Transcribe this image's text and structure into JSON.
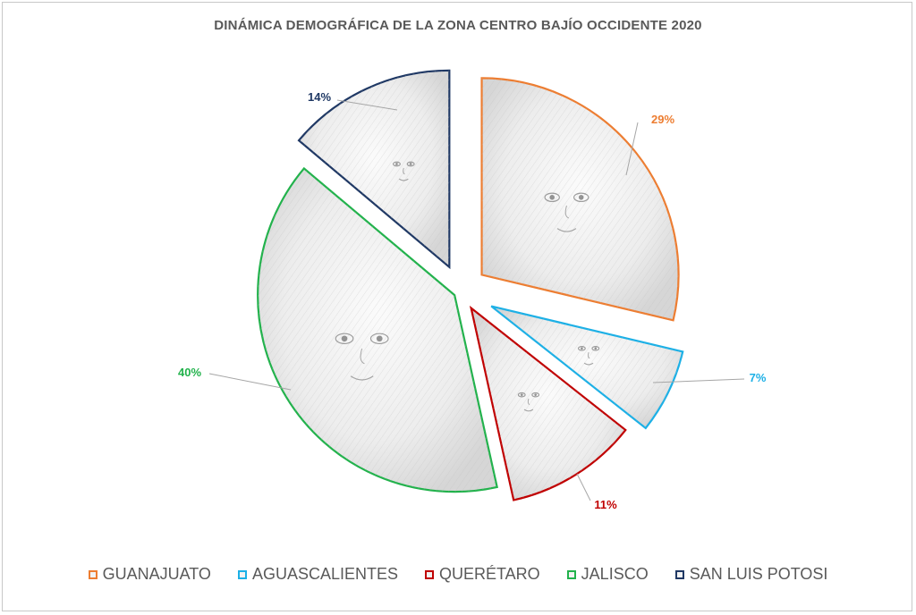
{
  "chart_data": {
    "type": "pie",
    "title": "DINÁMICA DEMOGRÁFICA DE LA ZONA CENTRO BAJÍO OCCIDENTE 2020",
    "categories": [
      "GUANAJUATO",
      "AGUASCALIENTES",
      "QUERÉTARO",
      "JALISCO",
      "SAN LUIS POTOSI"
    ],
    "values": [
      29,
      7,
      11,
      40,
      14
    ],
    "labels": [
      "29%",
      "7%",
      "11%",
      "40%",
      "14%"
    ],
    "colors": [
      "#ED7D31",
      "#1CB0E6",
      "#C00000",
      "#22B24C",
      "#1F3864"
    ],
    "exploded": true,
    "legend_position": "bottom",
    "slice_fill": "pencil-portrait-sketch"
  }
}
